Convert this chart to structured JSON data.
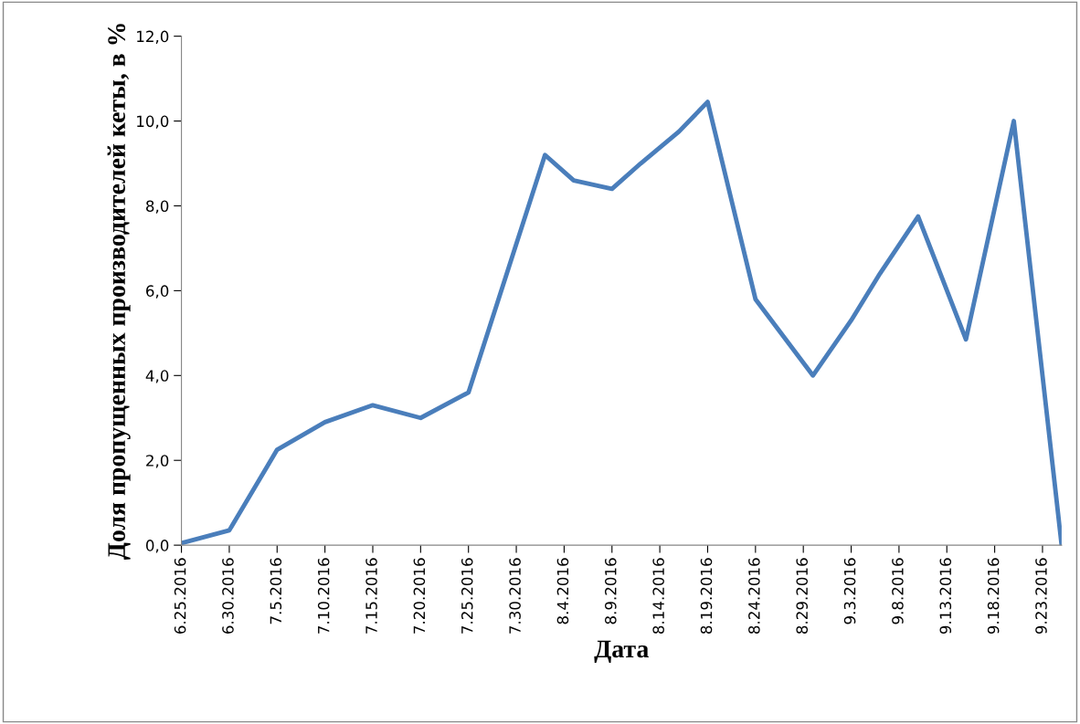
{
  "chart_data": {
    "type": "line",
    "xlabel": "Дата",
    "ylabel": "Доля пропущенных производителей кеты, в %",
    "x": [
      "2016-06-25",
      "2016-06-30",
      "2016-07-05",
      "2016-07-10",
      "2016-07-15",
      "2016-07-20",
      "2016-07-25",
      "2016-07-30",
      "2016-08-02",
      "2016-08-05",
      "2016-08-09",
      "2016-08-12",
      "2016-08-16",
      "2016-08-19",
      "2016-08-24",
      "2016-08-30",
      "2016-09-03",
      "2016-09-06",
      "2016-09-10",
      "2016-09-15",
      "2016-09-20",
      "2016-09-25"
    ],
    "series": [
      {
        "color": "#4a7ebb",
        "values": [
          0.05,
          0.35,
          2.25,
          2.9,
          3.3,
          3.0,
          3.6,
          7.1,
          9.2,
          8.6,
          8.4,
          9.0,
          9.75,
          10.45,
          5.8,
          4.0,
          5.3,
          6.4,
          7.75,
          4.85,
          10.0,
          0.0
        ]
      }
    ],
    "xlim": [
      "2016-06-25",
      "2016-09-25"
    ],
    "xticks": [
      {
        "value": "2016-06-25",
        "label": "6.25.2016"
      },
      {
        "value": "2016-06-30",
        "label": "6.30.2016"
      },
      {
        "value": "2016-07-05",
        "label": "7.5.2016"
      },
      {
        "value": "2016-07-10",
        "label": "7.10.2016"
      },
      {
        "value": "2016-07-15",
        "label": "7.15.2016"
      },
      {
        "value": "2016-07-20",
        "label": "7.20.2016"
      },
      {
        "value": "2016-07-25",
        "label": "7.25.2016"
      },
      {
        "value": "2016-07-30",
        "label": "7.30.2016"
      },
      {
        "value": "2016-08-04",
        "label": "8.4.2016"
      },
      {
        "value": "2016-08-09",
        "label": "8.9.2016"
      },
      {
        "value": "2016-08-14",
        "label": "8.14.2016"
      },
      {
        "value": "2016-08-19",
        "label": "8.19.2016"
      },
      {
        "value": "2016-08-24",
        "label": "8.24.2016"
      },
      {
        "value": "2016-08-29",
        "label": "8.29.2016"
      },
      {
        "value": "2016-09-03",
        "label": "9.3.2016"
      },
      {
        "value": "2016-09-08",
        "label": "9.8.2016"
      },
      {
        "value": "2016-09-13",
        "label": "9.13.2016"
      },
      {
        "value": "2016-09-18",
        "label": "9.18.2016"
      },
      {
        "value": "2016-09-23",
        "label": "9.23.2016"
      }
    ],
    "ylim": [
      0,
      12
    ],
    "yticks": [
      {
        "value": 0,
        "label": "0,0"
      },
      {
        "value": 2,
        "label": "2,0"
      },
      {
        "value": 4,
        "label": "4,0"
      },
      {
        "value": 6,
        "label": "6,0"
      },
      {
        "value": 8,
        "label": "8,0"
      },
      {
        "value": 10,
        "label": "10,0"
      },
      {
        "value": 12,
        "label": "12,0"
      }
    ],
    "grid": false,
    "legend": false,
    "marker": "none",
    "line_style": "solid"
  }
}
